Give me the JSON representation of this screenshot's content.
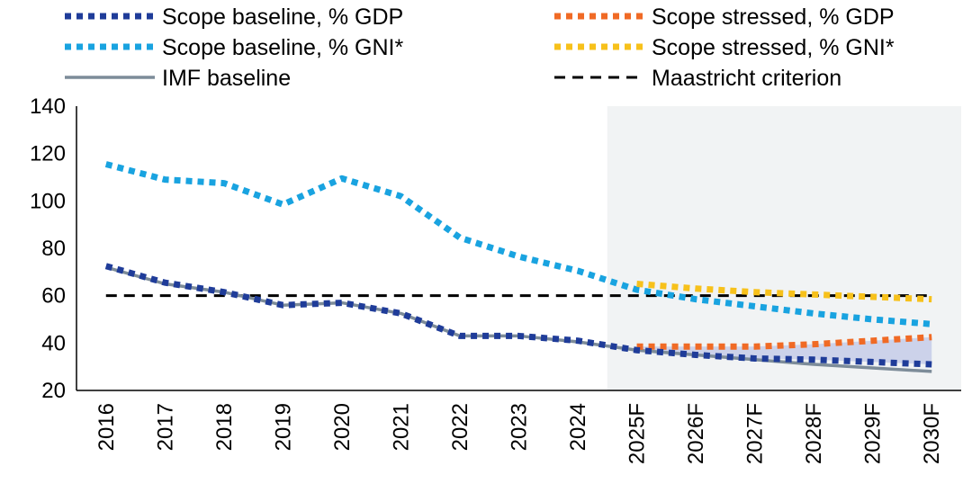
{
  "chart_data": {
    "type": "line",
    "categories": [
      "2016",
      "2017",
      "2018",
      "2019",
      "2020",
      "2021",
      "2022",
      "2023",
      "2024",
      "2025F",
      "2026F",
      "2027F",
      "2028F",
      "2029F",
      "2030F"
    ],
    "ylim": [
      20,
      140
    ],
    "yticks": [
      20,
      40,
      60,
      80,
      100,
      120,
      140
    ],
    "grid": false,
    "legend_position": "top",
    "forecast_shading_from": "2025F",
    "series": [
      {
        "name": "Scope baseline, % GDP",
        "color": "#1f3c99",
        "style": "dotted",
        "values": [
          72.5,
          65.5,
          61.5,
          56,
          57,
          52.5,
          43,
          43,
          41,
          37,
          35,
          33.5,
          33,
          32,
          31
        ]
      },
      {
        "name": "Scope stressed, % GDP",
        "color": "#f06a25",
        "style": "dotted",
        "values": [
          null,
          null,
          null,
          null,
          null,
          null,
          null,
          null,
          null,
          38.5,
          38.5,
          38.5,
          39.5,
          41,
          42.5
        ]
      },
      {
        "name": "Scope baseline, % GNI*",
        "color": "#19a3e0",
        "style": "dotted",
        "values": [
          115.5,
          109,
          107.5,
          98.5,
          109.5,
          102,
          84.5,
          76.5,
          70.5,
          62.5,
          58.5,
          55.5,
          52.5,
          50,
          48
        ]
      },
      {
        "name": "Scope stressed, % GNI*",
        "color": "#f7c11b",
        "style": "dotted",
        "values": [
          null,
          null,
          null,
          null,
          null,
          null,
          null,
          null,
          null,
          65,
          63,
          61.5,
          60.5,
          59.5,
          58.5
        ]
      },
      {
        "name": "IMF baseline",
        "color": "#7d8c99",
        "style": "solid",
        "values": [
          72,
          65,
          61.5,
          56,
          57,
          52.5,
          43,
          43,
          40.5,
          37,
          35,
          33,
          31,
          29.5,
          28
        ]
      },
      {
        "name": "Maastricht criterion",
        "color": "#000000",
        "style": "dashed",
        "values": [
          60,
          60,
          60,
          60,
          60,
          60,
          60,
          60,
          60,
          60,
          60,
          60,
          60,
          60,
          60
        ]
      }
    ],
    "band": {
      "lower_series": "Scope baseline, % GDP",
      "upper_series": "Scope stressed, % GDP",
      "color": "#c6cbe8"
    },
    "legend": [
      {
        "label": "Scope baseline, % GDP",
        "color": "#1f3c99",
        "style": "dotted",
        "column": 0,
        "row": 0
      },
      {
        "label": "Scope stressed, % GDP",
        "color": "#f06a25",
        "style": "dotted",
        "column": 1,
        "row": 0
      },
      {
        "label": "Scope baseline, % GNI*",
        "color": "#19a3e0",
        "style": "dotted",
        "column": 0,
        "row": 1
      },
      {
        "label": "Scope stressed, % GNI*",
        "color": "#f7c11b",
        "style": "dotted",
        "column": 1,
        "row": 1
      },
      {
        "label": "IMF baseline",
        "color": "#7d8c99",
        "style": "solid",
        "column": 0,
        "row": 2
      },
      {
        "label": "Maastricht criterion",
        "color": "#000000",
        "style": "dashed",
        "column": 1,
        "row": 2
      }
    ]
  }
}
